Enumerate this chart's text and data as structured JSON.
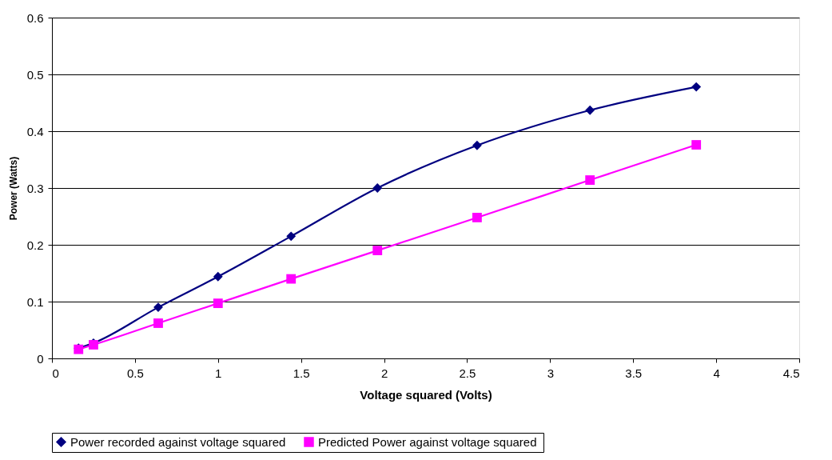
{
  "chart_data": {
    "type": "line",
    "xlabel": "Voltage squared (Volts)",
    "ylabel": "Power (Watts)",
    "xlim": [
      0,
      4.5
    ],
    "xticks": [
      0,
      0.5,
      1,
      1.5,
      2,
      2.5,
      3,
      3.5,
      4,
      4.5
    ],
    "ylim": [
      0,
      0.6
    ],
    "yticks": [
      0,
      0.1,
      0.2,
      0.3,
      0.4,
      0.5,
      0.6
    ],
    "grid": "y",
    "legend": "bottom",
    "series": [
      {
        "name": "Power recorded against voltage squared",
        "color": "#000080",
        "marker": "diamond",
        "x": [
          0.16,
          0.25,
          0.64,
          1.0,
          1.44,
          1.96,
          2.56,
          3.24,
          3.88
        ],
        "values": [
          0.018,
          0.027,
          0.09,
          0.144,
          0.215,
          0.3,
          0.375,
          0.437,
          0.478
        ]
      },
      {
        "name": "Predicted Power against voltage  squared",
        "color": "#ff00ff",
        "marker": "square",
        "x": [
          0.16,
          0.25,
          0.64,
          1.0,
          1.44,
          1.96,
          2.56,
          3.24,
          3.88
        ],
        "values": [
          0.016,
          0.024,
          0.062,
          0.097,
          0.14,
          0.19,
          0.248,
          0.314,
          0.376
        ]
      }
    ]
  }
}
